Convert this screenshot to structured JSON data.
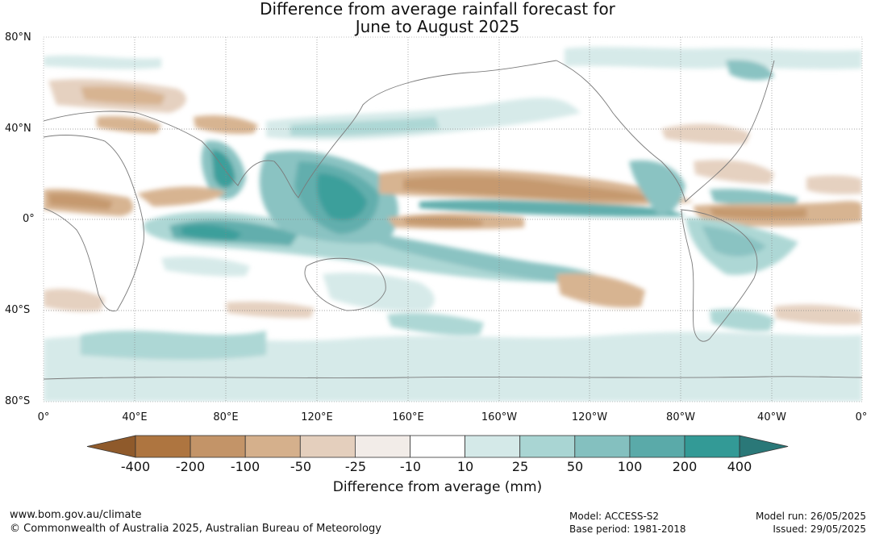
{
  "title": {
    "line1": "Difference from average rainfall forecast for",
    "line2": "June to August 2025"
  },
  "map": {
    "lat_labels": [
      "80°N",
      "40°N",
      "0°",
      "40°S",
      "80°S"
    ],
    "lon_labels": [
      "0°",
      "40°E",
      "80°E",
      "120°E",
      "160°E",
      "160°W",
      "120°W",
      "80°W",
      "40°W",
      "0°"
    ]
  },
  "colorbar": {
    "tick_labels": [
      "-400",
      "-200",
      "-100",
      "-50",
      "-25",
      "-10",
      "10",
      "25",
      "50",
      "100",
      "200",
      "400"
    ],
    "colors": [
      "#8f5a2b",
      "#ae7540",
      "#c39468",
      "#d5b08c",
      "#e4cfbd",
      "#f2ece8",
      "#ffffff",
      "#d4e9e8",
      "#a9d5d3",
      "#84c0bf",
      "#5aaaa9",
      "#339a96",
      "#2a7878"
    ],
    "title": "Difference from average (mm)"
  },
  "footer": {
    "url": "www.bom.gov.au/climate",
    "copyright": "© Commonwealth of Australia 2025, Australian Bureau of Meteorology",
    "model": "Model: ACCESS-S2",
    "base_period": "Base period: 1981-2018",
    "model_run": "Model run: 26/05/2025",
    "issued": "Issued: 29/05/2025"
  }
}
